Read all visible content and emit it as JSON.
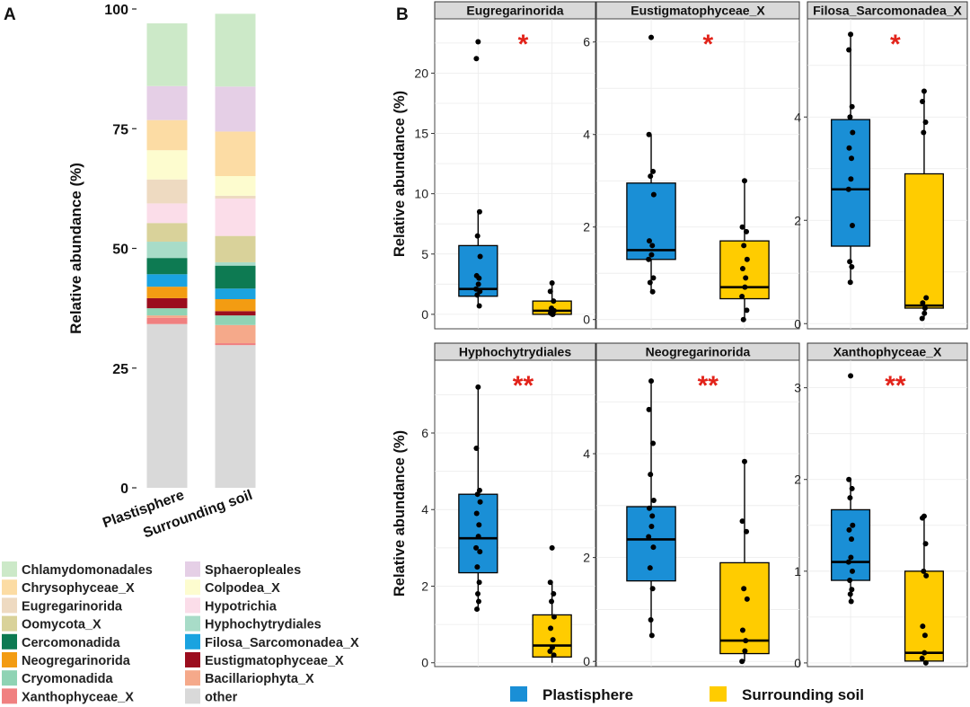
{
  "panel_labels": {
    "a": "A",
    "b": "B"
  },
  "legend_b": {
    "items": [
      {
        "label": "Plastisphere",
        "color": "#1a8fd6"
      },
      {
        "label": "Surrounding soil",
        "color": "#ffcc00"
      }
    ]
  },
  "chart_data": [
    {
      "type": "bar",
      "stacked": true,
      "panel": "A",
      "ylabel": "Relative abundance (%)",
      "xlabel": "",
      "ylim": [
        0,
        100
      ],
      "yticks": [
        "0",
        "25",
        "50",
        "75",
        "100"
      ],
      "categories": [
        "Plastisphere",
        "Surrounding soil"
      ],
      "series": [
        {
          "name": "other",
          "color": "#d9d9d9",
          "values": [
            34.2,
            29.8
          ]
        },
        {
          "name": "Xanthophyceae_X",
          "color": "#f08080",
          "values": [
            1.3,
            0.4
          ]
        },
        {
          "name": "Bacillariophyta_X",
          "color": "#f5a98a",
          "values": [
            0.5,
            3.8
          ]
        },
        {
          "name": "Cryomonadida",
          "color": "#8fd3b4",
          "values": [
            1.5,
            2.0
          ]
        },
        {
          "name": "Eustigmatophyceae_X",
          "color": "#9b0d1e",
          "values": [
            2.1,
            0.9
          ]
        },
        {
          "name": "Neogregarinorida",
          "color": "#f39c12",
          "values": [
            2.4,
            2.5
          ]
        },
        {
          "name": "Filosa_Sarcomonadea_X",
          "color": "#1aa3e0",
          "values": [
            2.6,
            2.2
          ]
        },
        {
          "name": "Cercomonadida",
          "color": "#0d7a52",
          "values": [
            3.4,
            4.8
          ]
        },
        {
          "name": "Hyphochytrydiales",
          "color": "#a8dcc8",
          "values": [
            3.4,
            0.7
          ]
        },
        {
          "name": "Oomycota_X",
          "color": "#d9d29a",
          "values": [
            3.9,
            5.5
          ]
        },
        {
          "name": "Hypotrichia",
          "color": "#fbdde9",
          "values": [
            4.1,
            7.8
          ]
        },
        {
          "name": "Eugregarinorida",
          "color": "#eedac1",
          "values": [
            5.0,
            0.6
          ]
        },
        {
          "name": "Colpodea_X",
          "color": "#fdfccf",
          "values": [
            6.1,
            4.1
          ]
        },
        {
          "name": "Chrysophyceae_X",
          "color": "#fcdca4",
          "values": [
            6.3,
            9.3
          ]
        },
        {
          "name": "Sphaeropleales",
          "color": "#e5cfe6",
          "values": [
            7.1,
            9.4
          ]
        },
        {
          "name": "Chlamydomonadales",
          "color": "#cce9c8",
          "values": [
            13.1,
            15.2
          ]
        }
      ],
      "legend_order": [
        "Chlamydomonadales",
        "Sphaeropleales",
        "Chrysophyceae_X",
        "Colpodea_X",
        "Eugregarinorida",
        "Hypotrichia",
        "Oomycota_X",
        "Hyphochytrydiales",
        "Cercomonadida",
        "Filosa_Sarcomonadea_X",
        "Neogregarinorida",
        "Eustigmatophyceae_X",
        "Cryomonadida",
        "Bacillariophyta_X",
        "Xanthophyceae_X",
        "other"
      ]
    },
    {
      "type": "box",
      "panel": "B",
      "title": "Eugregarinorida",
      "significance": "*",
      "ylabel": "Relative abundance (%)",
      "ylim": [
        -1.2,
        24.5
      ],
      "yticks": [
        0,
        5,
        10,
        15,
        20
      ],
      "series": [
        {
          "name": "Plastisphere",
          "q1": 1.5,
          "median": 2.1,
          "q3": 5.7,
          "whisker_low": 0.7,
          "whisker_high": 8.5,
          "points": [
            22.6,
            21.2,
            8.5,
            6.5,
            4.8,
            3.2,
            3.0,
            2.5,
            2.1,
            1.9,
            1.6,
            0.7
          ]
        },
        {
          "name": "Surrounding soil",
          "q1": 0.0,
          "median": 0.3,
          "q3": 1.1,
          "whisker_low": 0.0,
          "whisker_high": 2.6,
          "points": [
            2.6,
            1.9,
            1.1,
            0.5,
            0.3,
            0.1,
            0.0,
            0.0
          ]
        }
      ]
    },
    {
      "type": "box",
      "panel": "B",
      "title": "Eustigmatophyceae_X",
      "significance": "*",
      "ylabel": "",
      "ylim": [
        -0.2,
        6.5
      ],
      "yticks": [
        0,
        2,
        4,
        6
      ],
      "series": [
        {
          "name": "Plastisphere",
          "q1": 1.3,
          "median": 1.5,
          "q3": 2.95,
          "whisker_low": 0.6,
          "whisker_high": 4.0,
          "points": [
            6.1,
            4.0,
            3.2,
            3.1,
            2.7,
            1.7,
            1.6,
            1.4,
            1.3,
            0.9,
            0.8,
            0.6
          ]
        },
        {
          "name": "Surrounding soil",
          "q1": 0.45,
          "median": 0.7,
          "q3": 1.7,
          "whisker_low": 0.0,
          "whisker_high": 3.0,
          "points": [
            3.0,
            2.0,
            1.9,
            1.6,
            1.3,
            1.1,
            0.9,
            0.7,
            0.5,
            0.2,
            0.0
          ]
        }
      ]
    },
    {
      "type": "box",
      "panel": "B",
      "title": "Filosa_Sarcomonadea_X",
      "significance": "*",
      "ylabel": "",
      "ylim": [
        -0.1,
        5.9
      ],
      "yticks": [
        0,
        2,
        4
      ],
      "series": [
        {
          "name": "Plastisphere",
          "q1": 1.5,
          "median": 2.6,
          "q3": 3.95,
          "whisker_low": 0.8,
          "whisker_high": 5.6,
          "points": [
            5.6,
            5.3,
            4.2,
            4.0,
            3.7,
            3.4,
            3.2,
            2.8,
            2.6,
            1.9,
            1.2,
            1.1,
            0.8
          ]
        },
        {
          "name": "Surrounding soil",
          "q1": 0.3,
          "median": 0.35,
          "q3": 2.9,
          "whisker_low": 0.1,
          "whisker_high": 4.5,
          "points": [
            4.5,
            4.3,
            3.9,
            3.7,
            0.5,
            0.4,
            0.3,
            0.2,
            0.1
          ]
        }
      ]
    },
    {
      "type": "box",
      "panel": "B",
      "title": "Hyphochytrydiales",
      "significance": "**",
      "ylabel": "Relative abundance (%)",
      "ylim": [
        -0.1,
        7.9
      ],
      "yticks": [
        0,
        2,
        4,
        6
      ],
      "series": [
        {
          "name": "Plastisphere",
          "q1": 2.35,
          "median": 3.25,
          "q3": 4.4,
          "whisker_low": 1.4,
          "whisker_high": 7.2,
          "points": [
            7.2,
            5.6,
            4.5,
            4.4,
            4.2,
            3.9,
            3.6,
            3.3,
            3.0,
            2.9,
            2.5,
            2.1,
            1.8,
            1.6,
            1.4
          ]
        },
        {
          "name": "Surrounding soil",
          "q1": 0.15,
          "median": 0.45,
          "q3": 1.25,
          "whisker_low": 0.0,
          "whisker_high": 2.1,
          "points": [
            3.0,
            2.1,
            1.8,
            1.6,
            1.2,
            0.9,
            0.6,
            0.4,
            0.3,
            0.2
          ]
        }
      ]
    },
    {
      "type": "box",
      "panel": "B",
      "title": "Neogregarinorida",
      "significance": "**",
      "ylabel": "",
      "ylim": [
        -0.1,
        5.8
      ],
      "yticks": [
        0,
        2,
        4
      ],
      "series": [
        {
          "name": "Plastisphere",
          "q1": 1.55,
          "median": 2.35,
          "q3": 2.98,
          "whisker_low": 0.5,
          "whisker_high": 5.4,
          "points": [
            5.4,
            4.85,
            4.2,
            3.6,
            3.1,
            2.95,
            2.8,
            2.6,
            2.4,
            2.2,
            1.8,
            1.4,
            0.8,
            0.5
          ]
        },
        {
          "name": "Surrounding soil",
          "q1": 0.15,
          "median": 0.4,
          "q3": 1.9,
          "whisker_low": 0.0,
          "whisker_high": 3.85,
          "points": [
            3.85,
            2.7,
            2.5,
            1.4,
            1.2,
            0.6,
            0.4,
            0.2,
            0.0
          ]
        }
      ]
    },
    {
      "type": "box",
      "panel": "B",
      "title": "Xanthophyceae_X",
      "significance": "**",
      "ylabel": "",
      "ylim": [
        -0.04,
        3.3
      ],
      "yticks": [
        0,
        1,
        2,
        3
      ],
      "series": [
        {
          "name": "Plastisphere",
          "q1": 0.9,
          "median": 1.1,
          "q3": 1.67,
          "whisker_low": 0.67,
          "whisker_high": 2.0,
          "points": [
            3.13,
            2.0,
            1.9,
            1.8,
            1.5,
            1.45,
            1.35,
            1.15,
            1.1,
            1.0,
            0.9,
            0.8,
            0.75,
            0.67
          ]
        },
        {
          "name": "Surrounding soil",
          "q1": 0.02,
          "median": 0.11,
          "q3": 1.0,
          "whisker_low": 0.0,
          "whisker_high": 1.6,
          "points": [
            1.6,
            1.58,
            1.3,
            1.0,
            0.95,
            0.4,
            0.3,
            0.11,
            0.05,
            0.0
          ]
        }
      ]
    }
  ]
}
